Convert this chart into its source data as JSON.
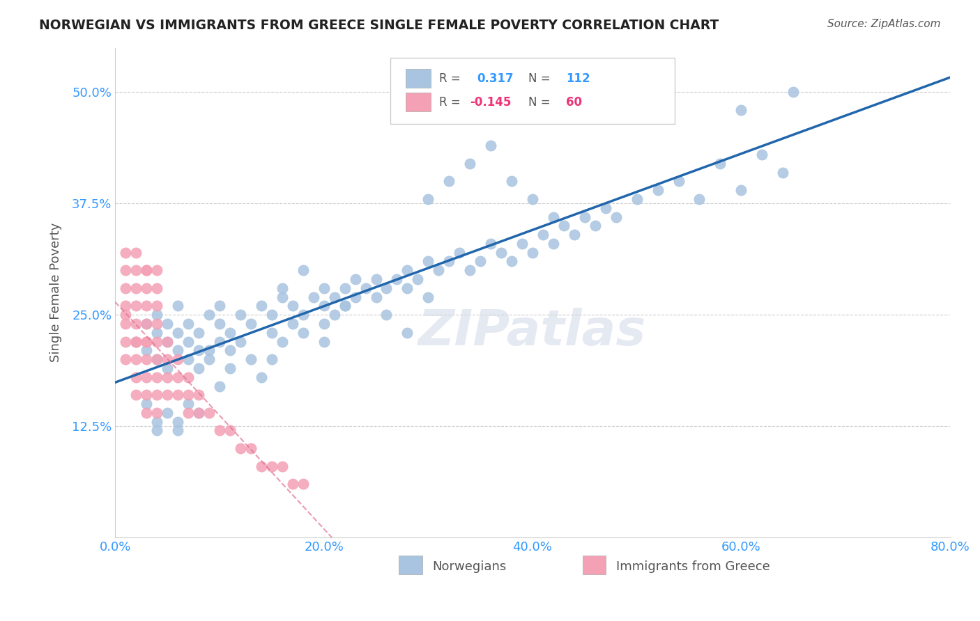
{
  "title": "NORWEGIAN VS IMMIGRANTS FROM GREECE SINGLE FEMALE POVERTY CORRELATION CHART",
  "source": "Source: ZipAtlas.com",
  "xlabel_ticks": [
    "0.0%",
    "20.0%",
    "40.0%",
    "60.0%",
    "80.0%"
  ],
  "xlabel_tick_vals": [
    0.0,
    0.2,
    0.4,
    0.6,
    0.8
  ],
  "ylabel_ticks": [
    "12.5%",
    "25.0%",
    "37.5%",
    "50.0%"
  ],
  "ylabel_tick_vals": [
    0.125,
    0.25,
    0.375,
    0.5
  ],
  "xlim": [
    0.0,
    0.8
  ],
  "ylim": [
    0.0,
    0.55
  ],
  "legend_labels": [
    "Norwegians",
    "Immigrants from Greece"
  ],
  "r_norwegian": 0.317,
  "n_norwegian": 112,
  "r_greece": -0.145,
  "n_greece": 60,
  "blue_color": "#a8c4e0",
  "pink_color": "#f4a0b5",
  "blue_line_color": "#2166ac",
  "pink_line_color": "#e07090",
  "watermark": "ZIPatlas",
  "blue_scatter_x": [
    0.02,
    0.03,
    0.03,
    0.04,
    0.04,
    0.04,
    0.05,
    0.05,
    0.05,
    0.06,
    0.06,
    0.06,
    0.07,
    0.07,
    0.07,
    0.08,
    0.08,
    0.09,
    0.09,
    0.1,
    0.1,
    0.1,
    0.11,
    0.11,
    0.12,
    0.12,
    0.13,
    0.13,
    0.14,
    0.15,
    0.15,
    0.16,
    0.16,
    0.17,
    0.17,
    0.18,
    0.18,
    0.19,
    0.2,
    0.2,
    0.2,
    0.21,
    0.21,
    0.22,
    0.22,
    0.23,
    0.23,
    0.24,
    0.25,
    0.25,
    0.26,
    0.27,
    0.28,
    0.28,
    0.29,
    0.3,
    0.3,
    0.31,
    0.32,
    0.33,
    0.34,
    0.35,
    0.36,
    0.37,
    0.38,
    0.39,
    0.4,
    0.41,
    0.42,
    0.43,
    0.44,
    0.45,
    0.46,
    0.47,
    0.48,
    0.5,
    0.52,
    0.54,
    0.56,
    0.58,
    0.6,
    0.62,
    0.64,
    0.3,
    0.32,
    0.34,
    0.36,
    0.38,
    0.4,
    0.42,
    0.16,
    0.18,
    0.2,
    0.22,
    0.14,
    0.15,
    0.26,
    0.28,
    0.08,
    0.09,
    0.1,
    0.11,
    0.07,
    0.08,
    0.06,
    0.05,
    0.04,
    0.03,
    0.6,
    0.65,
    0.04,
    0.06
  ],
  "blue_scatter_y": [
    0.22,
    0.24,
    0.21,
    0.23,
    0.25,
    0.2,
    0.22,
    0.24,
    0.19,
    0.23,
    0.21,
    0.26,
    0.2,
    0.22,
    0.24,
    0.21,
    0.23,
    0.25,
    0.2,
    0.22,
    0.24,
    0.26,
    0.21,
    0.23,
    0.25,
    0.22,
    0.24,
    0.2,
    0.26,
    0.23,
    0.25,
    0.27,
    0.22,
    0.24,
    0.26,
    0.23,
    0.25,
    0.27,
    0.24,
    0.26,
    0.28,
    0.25,
    0.27,
    0.26,
    0.28,
    0.27,
    0.29,
    0.28,
    0.27,
    0.29,
    0.28,
    0.29,
    0.3,
    0.28,
    0.29,
    0.31,
    0.27,
    0.3,
    0.31,
    0.32,
    0.3,
    0.31,
    0.33,
    0.32,
    0.31,
    0.33,
    0.32,
    0.34,
    0.33,
    0.35,
    0.34,
    0.36,
    0.35,
    0.37,
    0.36,
    0.38,
    0.39,
    0.4,
    0.38,
    0.42,
    0.39,
    0.43,
    0.41,
    0.38,
    0.4,
    0.42,
    0.44,
    0.4,
    0.38,
    0.36,
    0.28,
    0.3,
    0.22,
    0.26,
    0.18,
    0.2,
    0.25,
    0.23,
    0.19,
    0.21,
    0.17,
    0.19,
    0.15,
    0.14,
    0.13,
    0.14,
    0.13,
    0.15,
    0.48,
    0.5,
    0.12,
    0.12
  ],
  "pink_scatter_x": [
    0.01,
    0.01,
    0.01,
    0.01,
    0.01,
    0.01,
    0.01,
    0.01,
    0.02,
    0.02,
    0.02,
    0.02,
    0.02,
    0.02,
    0.02,
    0.02,
    0.02,
    0.02,
    0.03,
    0.03,
    0.03,
    0.03,
    0.03,
    0.03,
    0.03,
    0.03,
    0.03,
    0.03,
    0.04,
    0.04,
    0.04,
    0.04,
    0.04,
    0.04,
    0.04,
    0.04,
    0.05,
    0.05,
    0.05,
    0.05,
    0.06,
    0.06,
    0.06,
    0.07,
    0.07,
    0.07,
    0.08,
    0.08,
    0.09,
    0.1,
    0.11,
    0.12,
    0.13,
    0.14,
    0.15,
    0.16,
    0.17,
    0.18,
    0.03,
    0.04
  ],
  "pink_scatter_y": [
    0.22,
    0.24,
    0.26,
    0.28,
    0.3,
    0.2,
    0.32,
    0.25,
    0.22,
    0.24,
    0.26,
    0.28,
    0.2,
    0.3,
    0.18,
    0.32,
    0.22,
    0.16,
    0.22,
    0.24,
    0.26,
    0.2,
    0.28,
    0.18,
    0.3,
    0.22,
    0.16,
    0.14,
    0.2,
    0.22,
    0.24,
    0.18,
    0.26,
    0.16,
    0.14,
    0.28,
    0.2,
    0.22,
    0.18,
    0.16,
    0.2,
    0.18,
    0.16,
    0.18,
    0.16,
    0.14,
    0.16,
    0.14,
    0.14,
    0.12,
    0.12,
    0.1,
    0.1,
    0.08,
    0.08,
    0.08,
    0.06,
    0.06,
    0.3,
    0.3
  ]
}
